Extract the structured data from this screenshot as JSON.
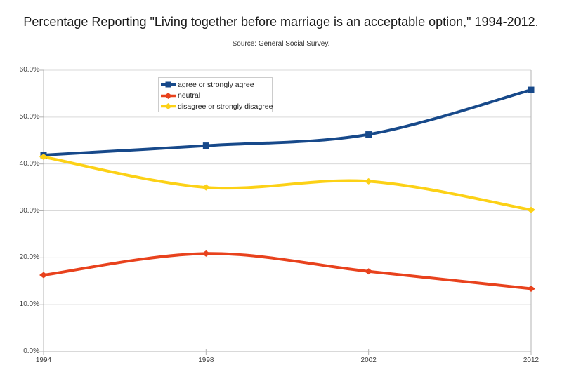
{
  "title": "Percentage Reporting \"Living together before marriage is an acceptable option,\" 1994-2012.",
  "subtitle": "Source: General Social Survey.",
  "chart_data": {
    "type": "line",
    "smooth": true,
    "categories": [
      "1994",
      "1998",
      "2002",
      "2012"
    ],
    "series": [
      {
        "name": "agree or strongly agree",
        "color": "#17498a",
        "marker": "square",
        "values": [
          41.9,
          43.9,
          46.3,
          55.8
        ]
      },
      {
        "name": "neutral",
        "color": "#e8421d",
        "marker": "diamond",
        "values": [
          16.3,
          20.9,
          17.1,
          13.4
        ]
      },
      {
        "name": "disagree or strongly disagree",
        "color": "#fcd116",
        "marker": "diamond",
        "values": [
          41.5,
          35.0,
          36.3,
          30.2
        ]
      }
    ],
    "xlabel": "",
    "ylabel": "",
    "ylim": [
      0,
      60
    ],
    "ytick_values": [
      0,
      10,
      20,
      30,
      40,
      50,
      60
    ],
    "ytick_labels": [
      "0.0%",
      "10.0%",
      "20.0%",
      "30.0%",
      "40.0%",
      "50.0%",
      "60.0%"
    ],
    "grid": true,
    "legend_position": "top-left-inside"
  },
  "colors": {
    "background": "#ffffff",
    "grid_line": "#d9d9d9",
    "axis_line": "#b3b3b3",
    "tick_text": "#3c3c3c",
    "title_text": "#1a1a1a",
    "legend_border": "#cccccc"
  }
}
